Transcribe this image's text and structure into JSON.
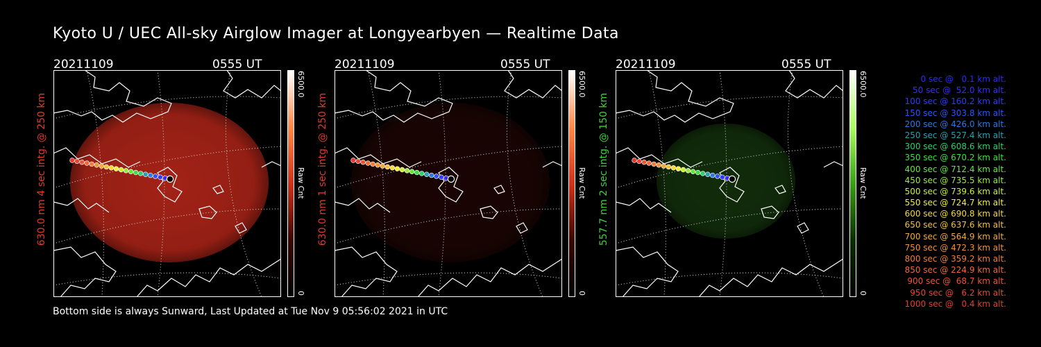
{
  "title": "Kyoto U / UEC All-sky Airglow Imager at Longyearbyen — Realtime Data",
  "footer": "Bottom side is always Sunward, Last Updated at Tue Nov  9 05:56:02 2021 in UTC",
  "panels": [
    {
      "date": "20211109",
      "time": "0555 UT",
      "ylabel": "630.0 nm 4 sec intg. @ 250 km",
      "ylabel_color": "#e03a2a",
      "cbar_max": "6500.0",
      "cbar_unit": "Raw Cnt",
      "cbar_min": "0",
      "image_color": "#c0281a",
      "image_brightness": 0.85
    },
    {
      "date": "20211109",
      "time": "0555 UT",
      "ylabel": "630.0 nm 1 sec intg. @ 250 km",
      "ylabel_color": "#e03a2a",
      "cbar_max": "6500.0",
      "cbar_unit": "Raw Cnt",
      "cbar_min": "0",
      "image_color": "#4a0d08",
      "image_brightness": 0.35
    },
    {
      "date": "20211109",
      "time": "0555 UT",
      "ylabel": "557.7 nm 2 sec intg. @ 150 km",
      "ylabel_color": "#3fd23a",
      "cbar_max": "6500.0",
      "cbar_unit": "Raw Cnt",
      "cbar_min": "0",
      "image_color": "#1d4a12",
      "image_brightness": 0.6
    }
  ],
  "trajectory_legend": [
    {
      "text": "0 sec @   0.1 km alt.",
      "color": "#2a2aff"
    },
    {
      "text": "50 sec @  52.0 km alt.",
      "color": "#3a2cff"
    },
    {
      "text": "100 sec @ 160.2 km alt.",
      "color": "#2f3bff"
    },
    {
      "text": "150 sec @ 303.8 km alt.",
      "color": "#2a55ff"
    },
    {
      "text": "200 sec @ 426.0 km alt.",
      "color": "#2a7ae0"
    },
    {
      "text": "250 sec @ 527.4 km alt.",
      "color": "#2aa0b0"
    },
    {
      "text": "300 sec @ 608.6 km alt.",
      "color": "#2ed070"
    },
    {
      "text": "350 sec @ 670.2 km alt.",
      "color": "#3ee040"
    },
    {
      "text": "400 sec @ 712.4 km alt.",
      "color": "#66e83a"
    },
    {
      "text": "450 sec @ 735.5 km alt.",
      "color": "#9aec3a"
    },
    {
      "text": "500 sec @ 739.6 km alt.",
      "color": "#ccf03a"
    },
    {
      "text": "550 sec @ 724.7 km alt.",
      "color": "#f4f03a"
    },
    {
      "text": "600 sec @ 690.8 km alt.",
      "color": "#f6da3a"
    },
    {
      "text": "650 sec @ 637.6 km alt.",
      "color": "#f6c03a"
    },
    {
      "text": "700 sec @ 564.9 km alt.",
      "color": "#f4a83a"
    },
    {
      "text": "750 sec @ 472.3 km alt.",
      "color": "#f4923a"
    },
    {
      "text": "800 sec @ 359.2 km alt.",
      "color": "#f27e3a"
    },
    {
      "text": "850 sec @ 224.9 km alt.",
      "color": "#f0683a"
    },
    {
      "text": "900 sec @  68.7 km alt.",
      "color": "#ee5436"
    },
    {
      "text": "950 sec @   6.2 km alt.",
      "color": "#ec4432"
    },
    {
      "text": "1000 sec @   0.4 km alt.",
      "color": "#ea3a2e"
    }
  ]
}
